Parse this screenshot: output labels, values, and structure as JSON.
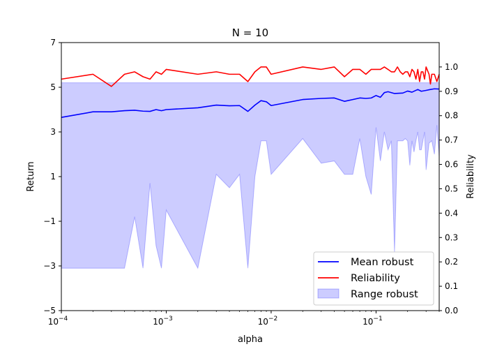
{
  "chart_data": {
    "type": "line",
    "title": "N = 10",
    "xlabel": "alpha",
    "ylabel_left": "Return",
    "ylabel_right": "Reliability",
    "x_scale": "log",
    "xlim": [
      0.0001,
      0.4
    ],
    "ylim_left": [
      -5,
      7
    ],
    "ylim_right": [
      0.0,
      1.1
    ],
    "x_ticks": [
      {
        "value": 0.0001,
        "base": "10",
        "exp": "−4"
      },
      {
        "value": 0.001,
        "base": "10",
        "exp": "−3"
      },
      {
        "value": 0.01,
        "base": "10",
        "exp": "−2"
      },
      {
        "value": 0.1,
        "base": "10",
        "exp": "−1"
      }
    ],
    "y_ticks_left": [
      {
        "value": -5,
        "label": "−5"
      },
      {
        "value": -3,
        "label": "−3"
      },
      {
        "value": -1,
        "label": "−1"
      },
      {
        "value": 1,
        "label": "1"
      },
      {
        "value": 3,
        "label": "3"
      },
      {
        "value": 5,
        "label": "5"
      },
      {
        "value": 7,
        "label": "7"
      }
    ],
    "y_ticks_right": [
      {
        "value": 0.0,
        "label": "0.0"
      },
      {
        "value": 0.1,
        "label": "0.1"
      },
      {
        "value": 0.2,
        "label": "0.2"
      },
      {
        "value": 0.3,
        "label": "0.3"
      },
      {
        "value": 0.4,
        "label": "0.4"
      },
      {
        "value": 0.5,
        "label": "0.5"
      },
      {
        "value": 0.6,
        "label": "0.6"
      },
      {
        "value": 0.7,
        "label": "0.7"
      },
      {
        "value": 0.8,
        "label": "0.8"
      },
      {
        "value": 0.9,
        "label": "0.9"
      },
      {
        "value": 1.0,
        "label": "1.0"
      }
    ],
    "grid": false,
    "legend_position": "lower-right",
    "series": [
      {
        "name": "Mean robust",
        "type": "line",
        "axis": "left",
        "color": "#0000ff",
        "points": [
          [
            0.0001,
            3.65
          ],
          [
            0.0002,
            3.9
          ],
          [
            0.0003,
            3.9
          ],
          [
            0.0004,
            3.95
          ],
          [
            0.0005,
            3.97
          ],
          [
            0.0006,
            3.93
          ],
          [
            0.0007,
            3.92
          ],
          [
            0.0008,
            4.0
          ],
          [
            0.0009,
            3.95
          ],
          [
            0.001,
            4.0
          ],
          [
            0.002,
            4.08
          ],
          [
            0.003,
            4.2
          ],
          [
            0.004,
            4.17
          ],
          [
            0.005,
            4.18
          ],
          [
            0.006,
            3.92
          ],
          [
            0.007,
            4.2
          ],
          [
            0.008,
            4.4
          ],
          [
            0.009,
            4.35
          ],
          [
            0.01,
            4.18
          ],
          [
            0.02,
            4.45
          ],
          [
            0.03,
            4.5
          ],
          [
            0.04,
            4.52
          ],
          [
            0.05,
            4.37
          ],
          [
            0.06,
            4.45
          ],
          [
            0.07,
            4.52
          ],
          [
            0.08,
            4.5
          ],
          [
            0.09,
            4.52
          ],
          [
            0.1,
            4.63
          ],
          [
            0.11,
            4.55
          ],
          [
            0.12,
            4.76
          ],
          [
            0.13,
            4.8
          ],
          [
            0.15,
            4.72
          ],
          [
            0.18,
            4.74
          ],
          [
            0.2,
            4.83
          ],
          [
            0.22,
            4.78
          ],
          [
            0.25,
            4.9
          ],
          [
            0.27,
            4.82
          ],
          [
            0.3,
            4.86
          ],
          [
            0.33,
            4.9
          ],
          [
            0.36,
            4.93
          ],
          [
            0.4,
            4.92
          ]
        ]
      },
      {
        "name": "Reliability",
        "type": "line",
        "axis": "right",
        "color": "#ff0000",
        "points": [
          [
            0.0001,
            0.95
          ],
          [
            0.0002,
            0.97
          ],
          [
            0.0003,
            0.92
          ],
          [
            0.0004,
            0.97
          ],
          [
            0.0005,
            0.98
          ],
          [
            0.0006,
            0.96
          ],
          [
            0.0007,
            0.95
          ],
          [
            0.0008,
            0.98
          ],
          [
            0.0009,
            0.97
          ],
          [
            0.001,
            0.99
          ],
          [
            0.002,
            0.97
          ],
          [
            0.003,
            0.98
          ],
          [
            0.004,
            0.97
          ],
          [
            0.005,
            0.97
          ],
          [
            0.006,
            0.94
          ],
          [
            0.007,
            0.98
          ],
          [
            0.008,
            1.0
          ],
          [
            0.009,
            1.0
          ],
          [
            0.01,
            0.97
          ],
          [
            0.02,
            1.0
          ],
          [
            0.03,
            0.99
          ],
          [
            0.04,
            1.0
          ],
          [
            0.05,
            0.96
          ],
          [
            0.06,
            0.99
          ],
          [
            0.07,
            0.99
          ],
          [
            0.08,
            0.97
          ],
          [
            0.09,
            0.99
          ],
          [
            0.1,
            0.99
          ],
          [
            0.11,
            0.99
          ],
          [
            0.12,
            1.0
          ],
          [
            0.13,
            0.99
          ],
          [
            0.14,
            0.98
          ],
          [
            0.15,
            0.98
          ],
          [
            0.16,
            1.0
          ],
          [
            0.17,
            0.98
          ],
          [
            0.18,
            0.97
          ],
          [
            0.19,
            0.98
          ],
          [
            0.2,
            0.98
          ],
          [
            0.21,
            0.96
          ],
          [
            0.22,
            0.99
          ],
          [
            0.23,
            0.98
          ],
          [
            0.24,
            0.95
          ],
          [
            0.25,
            0.99
          ],
          [
            0.26,
            0.94
          ],
          [
            0.27,
            0.98
          ],
          [
            0.28,
            0.98
          ],
          [
            0.29,
            0.95
          ],
          [
            0.3,
            1.0
          ],
          [
            0.32,
            0.97
          ],
          [
            0.33,
            0.93
          ],
          [
            0.34,
            0.97
          ],
          [
            0.36,
            0.97
          ],
          [
            0.38,
            0.94
          ],
          [
            0.4,
            0.97
          ]
        ]
      },
      {
        "name": "Range robust",
        "type": "area",
        "axis": "left",
        "color": "#0000ff",
        "opacity": 0.2,
        "upper": 5.2,
        "lower_points": [
          [
            0.0001,
            -3.1
          ],
          [
            0.0004,
            -3.1
          ],
          [
            0.0005,
            -0.8
          ],
          [
            0.0006,
            -3.1
          ],
          [
            0.0007,
            0.7
          ],
          [
            0.0008,
            -2.1
          ],
          [
            0.0009,
            -3.1
          ],
          [
            0.001,
            -0.5
          ],
          [
            0.002,
            -3.1
          ],
          [
            0.003,
            1.1
          ],
          [
            0.004,
            0.5
          ],
          [
            0.005,
            1.1
          ],
          [
            0.006,
            -3.1
          ],
          [
            0.007,
            1.0
          ],
          [
            0.008,
            2.6
          ],
          [
            0.009,
            2.6
          ],
          [
            0.01,
            1.1
          ],
          [
            0.02,
            2.7
          ],
          [
            0.03,
            1.6
          ],
          [
            0.04,
            1.7
          ],
          [
            0.05,
            1.1
          ],
          [
            0.06,
            1.1
          ],
          [
            0.07,
            2.7
          ],
          [
            0.08,
            1.0
          ],
          [
            0.09,
            0.2
          ],
          [
            0.1,
            3.2
          ],
          [
            0.11,
            1.7
          ],
          [
            0.12,
            3.0
          ],
          [
            0.13,
            2.2
          ],
          [
            0.14,
            2.6
          ],
          [
            0.15,
            -2.4
          ],
          [
            0.16,
            2.6
          ],
          [
            0.17,
            2.6
          ],
          [
            0.18,
            2.6
          ],
          [
            0.19,
            2.7
          ],
          [
            0.2,
            2.6
          ],
          [
            0.21,
            1.5
          ],
          [
            0.22,
            2.6
          ],
          [
            0.23,
            2.1
          ],
          [
            0.24,
            2.6
          ],
          [
            0.25,
            3.0
          ],
          [
            0.26,
            2.2
          ],
          [
            0.27,
            2.2
          ],
          [
            0.28,
            2.6
          ],
          [
            0.29,
            3.0
          ],
          [
            0.3,
            1.3
          ],
          [
            0.32,
            2.5
          ],
          [
            0.34,
            2.6
          ],
          [
            0.36,
            2.0
          ],
          [
            0.38,
            3.3
          ],
          [
            0.4,
            1.9
          ]
        ]
      }
    ]
  }
}
